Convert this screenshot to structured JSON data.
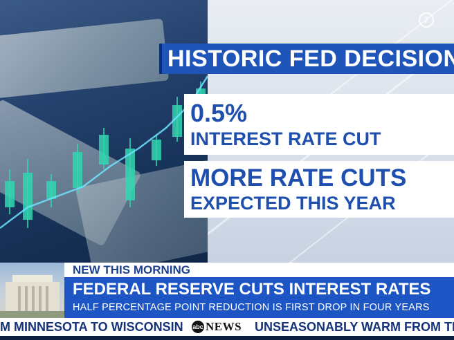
{
  "brand": {
    "network_badge": "7",
    "abc_glyph": "abc",
    "abc_word": "NEWS"
  },
  "graphic": {
    "headline": "HISTORIC FED DECISION",
    "stat_value": "0.5%",
    "stat_label": "INTEREST RATE CUT",
    "note_line1": "MORE RATE CUTS",
    "note_line2": "EXPECTED THIS YEAR",
    "colors": {
      "headline_bg": "#1f54b8",
      "card_text": "#1e4fae",
      "candle": "#32d6b0"
    }
  },
  "lower_third": {
    "kicker": "NEW THIS MORNING",
    "title": "FEDERAL RESERVE CUTS INTEREST RATES",
    "subtitle": "HALF PERCENTAGE POINT REDUCTION IS FIRST DROP IN FOUR YEARS",
    "bar_color": "#1d56c4"
  },
  "ticker": {
    "left_item": "OM MINNESOTA TO WISCONSIN",
    "right_item": "UNSEASONABLY WARM FROM TEXAS"
  }
}
